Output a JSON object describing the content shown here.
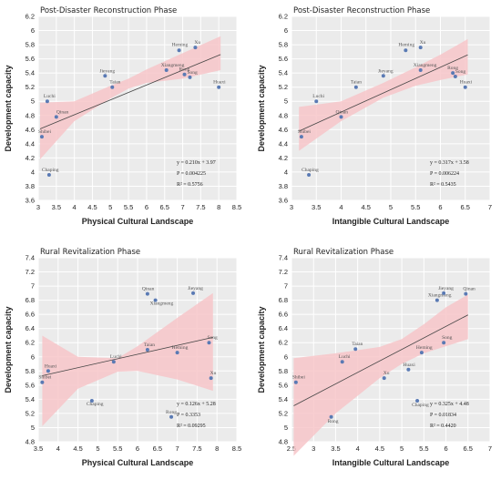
{
  "colors": {
    "panel_bg": "#ebebeb",
    "band": "#f7c5c9",
    "fit_line": "#444444",
    "point": "#5a7ab4"
  },
  "chart_data": [
    {
      "type": "scatter",
      "title": "Post-Disaster Reconstruction Phase",
      "xlabel": "Physical Cultural Landscape",
      "ylabel": "Development capacity",
      "xlim": [
        3,
        8.5
      ],
      "ylim": [
        3.6,
        6.2
      ],
      "xticks": [
        "3",
        "3.5",
        "4",
        "4.5",
        "5",
        "5.5",
        "6",
        "6.5",
        "7",
        "7.5",
        "8",
        "8.5"
      ],
      "yticks": [
        "3.6",
        "3.8",
        "4",
        "4.2",
        "4.4",
        "4.6",
        "4.8",
        "5",
        "5.2",
        "5.4",
        "5.6",
        "5.8",
        "6",
        "6.2"
      ],
      "grid": true,
      "points": [
        {
          "label": "Luchi",
          "x": 3.25,
          "y": 5.0
        },
        {
          "label": "Qinan",
          "x": 3.5,
          "y": 4.78
        },
        {
          "label": "Shibei",
          "x": 3.1,
          "y": 4.5
        },
        {
          "label": "Chaping",
          "x": 3.3,
          "y": 3.96
        },
        {
          "label": "Jieyang",
          "x": 4.85,
          "y": 5.36
        },
        {
          "label": "Taian",
          "x": 5.05,
          "y": 5.2
        },
        {
          "label": "Xiangmeng",
          "x": 6.55,
          "y": 5.44
        },
        {
          "label": "Heming",
          "x": 6.9,
          "y": 5.72
        },
        {
          "label": "Xu",
          "x": 7.35,
          "y": 5.76
        },
        {
          "label": "Rong",
          "x": 7.05,
          "y": 5.38
        },
        {
          "label": "Song",
          "x": 7.2,
          "y": 5.34
        },
        {
          "label": "Huaxi",
          "x": 8.0,
          "y": 5.2
        }
      ],
      "fit": {
        "slope": 0.21,
        "intercept": 3.97,
        "x_range": [
          3.05,
          8.05
        ]
      },
      "band": {
        "x": [
          3.05,
          4.0,
          5.0,
          5.5,
          6.0,
          7.0,
          8.05
        ],
        "lower": [
          4.18,
          4.72,
          5.04,
          5.18,
          5.26,
          5.32,
          5.44
        ],
        "upper": [
          4.98,
          5.0,
          5.22,
          5.32,
          5.45,
          5.68,
          5.92
        ]
      },
      "annotations": [
        "y = 0.210x + 3.97",
        "P = 0.004225",
        "R² = 0.5756"
      ]
    },
    {
      "type": "scatter",
      "title": "Post-Disaster Reconstruction Phase",
      "xlabel": "Intangible Cultural Landscape",
      "ylabel": "Development capacity",
      "xlim": [
        3,
        7
      ],
      "ylim": [
        3.6,
        6.2
      ],
      "xticks": [
        "3",
        "3.5",
        "4",
        "4.5",
        "5",
        "5.5",
        "6",
        "6.5",
        "7"
      ],
      "yticks": [
        "3.6",
        "3.8",
        "4",
        "4.2",
        "4.4",
        "4.6",
        "4.8",
        "5",
        "5.2",
        "5.4",
        "5.6",
        "5.8",
        "6",
        "6.2"
      ],
      "grid": true,
      "points": [
        {
          "label": "Luchi",
          "x": 3.5,
          "y": 5.0
        },
        {
          "label": "Qinan",
          "x": 4.0,
          "y": 4.78
        },
        {
          "label": "Shibei",
          "x": 3.2,
          "y": 4.5
        },
        {
          "label": "Chaping",
          "x": 3.35,
          "y": 3.96
        },
        {
          "label": "Taian",
          "x": 4.3,
          "y": 5.2
        },
        {
          "label": "Jieyang",
          "x": 4.85,
          "y": 5.36
        },
        {
          "label": "Xiangmeng",
          "x": 5.6,
          "y": 5.44
        },
        {
          "label": "Heming",
          "x": 5.3,
          "y": 5.72
        },
        {
          "label": "Xu",
          "x": 5.6,
          "y": 5.76
        },
        {
          "label": "Rong",
          "x": 6.25,
          "y": 5.4
        },
        {
          "label": "Song",
          "x": 6.3,
          "y": 5.35
        },
        {
          "label": "Huaxi",
          "x": 6.5,
          "y": 5.2
        }
      ],
      "fit": {
        "slope": 0.317,
        "intercept": 3.58,
        "x_range": [
          3.15,
          6.55
        ]
      },
      "band": {
        "x": [
          3.15,
          4.0,
          4.85,
          5.5,
          6.0,
          6.55
        ],
        "lower": [
          4.3,
          4.72,
          5.05,
          5.22,
          5.3,
          5.38
        ],
        "upper": [
          4.92,
          5.0,
          5.26,
          5.48,
          5.66,
          5.88
        ]
      },
      "annotations": [
        "y = 0.317x + 3.58",
        "P = 0.006224",
        "R² = 0.5435"
      ]
    },
    {
      "type": "scatter",
      "title": "Rural Revitalization Phase",
      "xlabel": "Physical Cultural Landscape",
      "ylabel": "Development capacity",
      "xlim": [
        3.5,
        8.5
      ],
      "ylim": [
        4.8,
        7.4
      ],
      "xticks": [
        "3.5",
        "4",
        "4.5",
        "5",
        "5.5",
        "6",
        "6.5",
        "7",
        "7.5",
        "8",
        "8.5"
      ],
      "yticks": [
        "4.8",
        "5",
        "5.2",
        "5.4",
        "5.6",
        "5.8",
        "6",
        "6.2",
        "6.4",
        "6.6",
        "6.8",
        "7",
        "7.2",
        "7.4"
      ],
      "grid": true,
      "points": [
        {
          "label": "Huaxi",
          "x": 3.75,
          "y": 5.8
        },
        {
          "label": "Shibei",
          "x": 3.6,
          "y": 5.64
        },
        {
          "label": "Chaping",
          "x": 4.85,
          "y": 5.38
        },
        {
          "label": "Luchi",
          "x": 5.4,
          "y": 5.93
        },
        {
          "label": "Taian",
          "x": 6.25,
          "y": 6.1
        },
        {
          "label": "Qinan",
          "x": 6.25,
          "y": 6.89
        },
        {
          "label": "Xiangmeng",
          "x": 6.45,
          "y": 6.8
        },
        {
          "label": "Jieyang",
          "x": 7.4,
          "y": 6.9
        },
        {
          "label": "Heming",
          "x": 7.0,
          "y": 6.06
        },
        {
          "label": "Song",
          "x": 7.8,
          "y": 6.2
        },
        {
          "label": "Xu",
          "x": 7.85,
          "y": 5.7
        },
        {
          "label": "Rong",
          "x": 6.85,
          "y": 5.15
        }
      ],
      "fit": {
        "slope": 0.126,
        "intercept": 5.28,
        "x_range": [
          3.6,
          7.9
        ]
      },
      "band": {
        "x": [
          3.6,
          4.5,
          5.5,
          6.0,
          7.0,
          7.9
        ],
        "lower": [
          5.02,
          5.55,
          5.79,
          5.8,
          5.68,
          5.52
        ],
        "upper": [
          6.3,
          6.0,
          5.98,
          6.15,
          6.55,
          6.9
        ]
      },
      "annotations": [
        "y = 0.126x + 5.28",
        "P = 0.3353",
        "R² = 0.09295"
      ]
    },
    {
      "type": "scatter",
      "title": "Rural Revitalization Phase",
      "xlabel": "Intangible Cultural Landscape",
      "ylabel": "Development capacity",
      "xlim": [
        2.5,
        7
      ],
      "ylim": [
        4.8,
        7.4
      ],
      "xticks": [
        "2.5",
        "3",
        "3.5",
        "4",
        "4.5",
        "5",
        "5.5",
        "6",
        "6.5",
        "7"
      ],
      "yticks": [
        "4.8",
        "5",
        "5.2",
        "5.4",
        "5.6",
        "5.8",
        "6",
        "6.2",
        "6.4",
        "6.6",
        "6.8",
        "7",
        "7.2",
        "7.4"
      ],
      "grid": true,
      "points": [
        {
          "label": "Shibei",
          "x": 2.6,
          "y": 5.64
        },
        {
          "label": "Rong",
          "x": 3.4,
          "y": 5.15
        },
        {
          "label": "Luchi",
          "x": 3.65,
          "y": 5.93
        },
        {
          "label": "Taian",
          "x": 3.95,
          "y": 6.11
        },
        {
          "label": "Xu",
          "x": 4.6,
          "y": 5.7
        },
        {
          "label": "Huaxi",
          "x": 5.15,
          "y": 5.82
        },
        {
          "label": "Chaping",
          "x": 5.35,
          "y": 5.38
        },
        {
          "label": "Heming",
          "x": 5.45,
          "y": 6.06
        },
        {
          "label": "Song",
          "x": 5.95,
          "y": 6.2
        },
        {
          "label": "Xiangmeng",
          "x": 5.8,
          "y": 6.8
        },
        {
          "label": "Jieyang",
          "x": 5.95,
          "y": 6.9
        },
        {
          "label": "Qinan",
          "x": 6.45,
          "y": 6.89
        }
      ],
      "fit": {
        "slope": 0.325,
        "intercept": 4.48,
        "x_range": [
          2.55,
          6.5
        ]
      },
      "band": {
        "x": [
          2.55,
          3.5,
          4.5,
          5.0,
          5.5,
          6.0,
          6.5
        ],
        "lower": [
          4.6,
          5.2,
          5.7,
          5.9,
          6.05,
          6.15,
          6.25
        ],
        "upper": [
          5.98,
          6.05,
          6.14,
          6.25,
          6.46,
          6.7,
          6.88
        ]
      },
      "annotations": [
        "y = 0.325x + 4.48",
        "P = 0.01834",
        "R² = 0.4420"
      ]
    }
  ]
}
